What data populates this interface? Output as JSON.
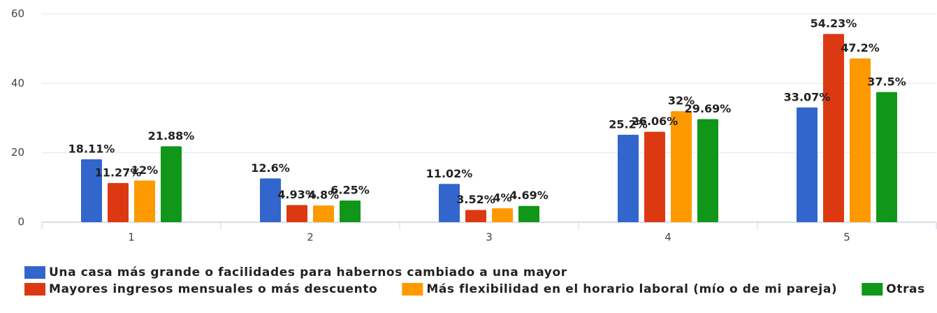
{
  "chart_data": {
    "type": "bar",
    "categories": [
      "1",
      "2",
      "3",
      "4",
      "5"
    ],
    "series": [
      {
        "name": "Una casa más grande o facilidades para habernos cambiado a una mayor",
        "color": "#3366cc",
        "values": [
          18.11,
          12.6,
          11.02,
          25.2,
          33.07
        ],
        "value_labels": [
          "18.11%",
          "12.6%",
          "11.02%",
          "25.2%",
          "33.07%"
        ]
      },
      {
        "name": "Mayores ingresos mensuales o más descuento",
        "color": "#dc3912",
        "values": [
          11.27,
          4.93,
          3.52,
          26.06,
          54.23
        ],
        "value_labels": [
          "11.27%",
          "4.93%",
          "3.52%",
          "26.06%",
          "54.23%"
        ]
      },
      {
        "name": "Más flexibilidad en el horario laboral (mío o de mi pareja)",
        "color": "#ff9900",
        "values": [
          12,
          4.8,
          4,
          32,
          47.2
        ],
        "value_labels": [
          "12%",
          "4.8%",
          "4%",
          "32%",
          "47.2%"
        ]
      },
      {
        "name": "Otras",
        "color": "#109618",
        "values": [
          21.88,
          6.25,
          4.69,
          29.69,
          37.5
        ],
        "value_labels": [
          "21.88%",
          "6.25%",
          "4.69%",
          "29.69%",
          "37.5%"
        ]
      }
    ],
    "ylim": [
      0,
      60
    ],
    "yticks": [
      0,
      20,
      40,
      60
    ],
    "grid": true,
    "legend": "bottom"
  }
}
